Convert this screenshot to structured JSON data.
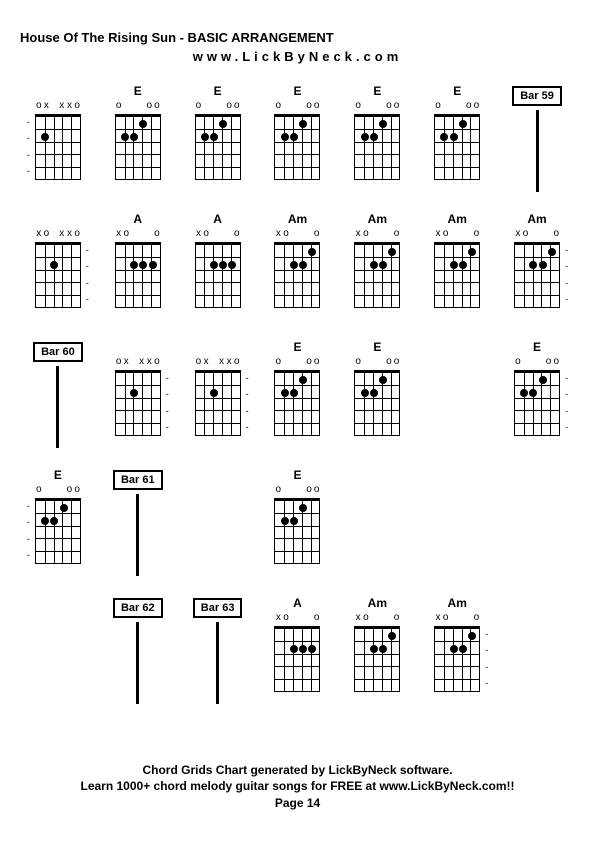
{
  "title": "House Of The Rising Sun - BASIC ARRANGEMENT",
  "subtitle": "www.LickByNeck.com",
  "footer": {
    "line1": "Chord Grids Chart generated by LickByNeck software.",
    "line2": "Learn 1000+ chord melody guitar songs for FREE at www.LickByNeck.com!!",
    "page": "Page 14"
  },
  "grid": {
    "cols": 7,
    "rows": 5
  },
  "style": {
    "bg": "#ffffff",
    "fg": "#000000",
    "title_size": 13,
    "label_size": 12,
    "footer_size": 12,
    "chord_width": 54,
    "chord_height": 84,
    "frets": 5,
    "strings": 6
  },
  "markers": {
    "x": "x",
    "o": "o"
  },
  "cells": [
    {
      "type": "chord",
      "label": "",
      "top": [
        "o",
        "x",
        "",
        "x",
        "x",
        "o"
      ],
      "dots": [
        [
          2,
          2
        ]
      ],
      "dashes": "left"
    },
    {
      "type": "chord",
      "label": "E",
      "top": [
        "o",
        "",
        "",
        "",
        "o",
        "o"
      ],
      "dots": [
        [
          2,
          2
        ],
        [
          2,
          3
        ],
        [
          1,
          4
        ]
      ]
    },
    {
      "type": "chord",
      "label": "E",
      "top": [
        "o",
        "",
        "",
        "",
        "o",
        "o"
      ],
      "dots": [
        [
          2,
          2
        ],
        [
          2,
          3
        ],
        [
          1,
          4
        ]
      ]
    },
    {
      "type": "chord",
      "label": "E",
      "top": [
        "o",
        "",
        "",
        "",
        "o",
        "o"
      ],
      "dots": [
        [
          2,
          2
        ],
        [
          2,
          3
        ],
        [
          1,
          4
        ]
      ]
    },
    {
      "type": "chord",
      "label": "E",
      "top": [
        "o",
        "",
        "",
        "",
        "o",
        "o"
      ],
      "dots": [
        [
          2,
          2
        ],
        [
          2,
          3
        ],
        [
          1,
          4
        ]
      ]
    },
    {
      "type": "chord",
      "label": "E",
      "top": [
        "o",
        "",
        "",
        "",
        "o",
        "o"
      ],
      "dots": [
        [
          2,
          2
        ],
        [
          2,
          3
        ],
        [
          1,
          4
        ]
      ]
    },
    {
      "type": "bar",
      "label": "Bar 59"
    },
    {
      "type": "chord",
      "label": "",
      "top": [
        "x",
        "o",
        "",
        "x",
        "x",
        "o"
      ],
      "dots": [
        [
          2,
          3
        ]
      ],
      "dashes": "right"
    },
    {
      "type": "chord",
      "label": "A",
      "top": [
        "x",
        "o",
        "",
        "",
        "",
        "o"
      ],
      "dots": [
        [
          2,
          3
        ],
        [
          2,
          4
        ],
        [
          2,
          5
        ]
      ]
    },
    {
      "type": "chord",
      "label": "A",
      "top": [
        "x",
        "o",
        "",
        "",
        "",
        "o"
      ],
      "dots": [
        [
          2,
          3
        ],
        [
          2,
          4
        ],
        [
          2,
          5
        ]
      ]
    },
    {
      "type": "chord",
      "label": "Am",
      "top": [
        "x",
        "o",
        "",
        "",
        "",
        "o"
      ],
      "dots": [
        [
          2,
          3
        ],
        [
          2,
          4
        ],
        [
          1,
          5
        ]
      ]
    },
    {
      "type": "chord",
      "label": "Am",
      "top": [
        "x",
        "o",
        "",
        "",
        "",
        "o"
      ],
      "dots": [
        [
          2,
          3
        ],
        [
          2,
          4
        ],
        [
          1,
          5
        ]
      ]
    },
    {
      "type": "chord",
      "label": "Am",
      "top": [
        "x",
        "o",
        "",
        "",
        "",
        "o"
      ],
      "dots": [
        [
          2,
          3
        ],
        [
          2,
          4
        ],
        [
          1,
          5
        ]
      ]
    },
    {
      "type": "chord",
      "label": "Am",
      "top": [
        "x",
        "o",
        "",
        "",
        "",
        "o"
      ],
      "dots": [
        [
          2,
          3
        ],
        [
          2,
          4
        ],
        [
          1,
          5
        ]
      ],
      "dashes": "right"
    },
    {
      "type": "bar",
      "label": "Bar 60"
    },
    {
      "type": "chord",
      "label": "",
      "top": [
        "o",
        "x",
        "",
        "x",
        "x",
        "o"
      ],
      "dots": [
        [
          2,
          3
        ]
      ],
      "dashes": "right"
    },
    {
      "type": "chord",
      "label": "",
      "top": [
        "o",
        "x",
        "",
        "x",
        "x",
        "o"
      ],
      "dots": [
        [
          2,
          3
        ]
      ],
      "dashes": "right"
    },
    {
      "type": "chord",
      "label": "E",
      "top": [
        "o",
        "",
        "",
        "",
        "o",
        "o"
      ],
      "dots": [
        [
          2,
          2
        ],
        [
          2,
          3
        ],
        [
          1,
          4
        ]
      ]
    },
    {
      "type": "chord",
      "label": "E",
      "top": [
        "o",
        "",
        "",
        "",
        "o",
        "o"
      ],
      "dots": [
        [
          2,
          2
        ],
        [
          2,
          3
        ],
        [
          1,
          4
        ]
      ]
    },
    {
      "type": "empty"
    },
    {
      "type": "chord",
      "label": "E",
      "top": [
        "o",
        "",
        "",
        "",
        "o",
        "o"
      ],
      "dots": [
        [
          2,
          2
        ],
        [
          2,
          3
        ],
        [
          1,
          4
        ]
      ],
      "dashes": "right"
    },
    {
      "type": "chord",
      "label": "E",
      "top": [
        "o",
        "",
        "",
        "",
        "o",
        "o"
      ],
      "dots": [
        [
          2,
          2
        ],
        [
          2,
          3
        ],
        [
          1,
          4
        ]
      ],
      "dashes": "left"
    },
    {
      "type": "bar",
      "label": "Bar 61"
    },
    {
      "type": "empty"
    },
    {
      "type": "chord",
      "label": "E",
      "top": [
        "o",
        "",
        "",
        "",
        "o",
        "o"
      ],
      "dots": [
        [
          2,
          2
        ],
        [
          2,
          3
        ],
        [
          1,
          4
        ]
      ]
    },
    {
      "type": "empty"
    },
    {
      "type": "empty"
    },
    {
      "type": "empty"
    },
    {
      "type": "empty"
    },
    {
      "type": "bar",
      "label": "Bar 62"
    },
    {
      "type": "bar",
      "label": "Bar 63"
    },
    {
      "type": "chord",
      "label": "A",
      "top": [
        "x",
        "o",
        "",
        "",
        "",
        "o"
      ],
      "dots": [
        [
          2,
          3
        ],
        [
          2,
          4
        ],
        [
          2,
          5
        ]
      ]
    },
    {
      "type": "chord",
      "label": "Am",
      "top": [
        "x",
        "o",
        "",
        "",
        "",
        "o"
      ],
      "dots": [
        [
          2,
          3
        ],
        [
          2,
          4
        ],
        [
          1,
          5
        ]
      ]
    },
    {
      "type": "chord",
      "label": "Am",
      "top": [
        "x",
        "o",
        "",
        "",
        "",
        "o"
      ],
      "dots": [
        [
          2,
          3
        ],
        [
          2,
          4
        ],
        [
          1,
          5
        ]
      ],
      "dashes": "right"
    },
    {
      "type": "empty"
    }
  ]
}
